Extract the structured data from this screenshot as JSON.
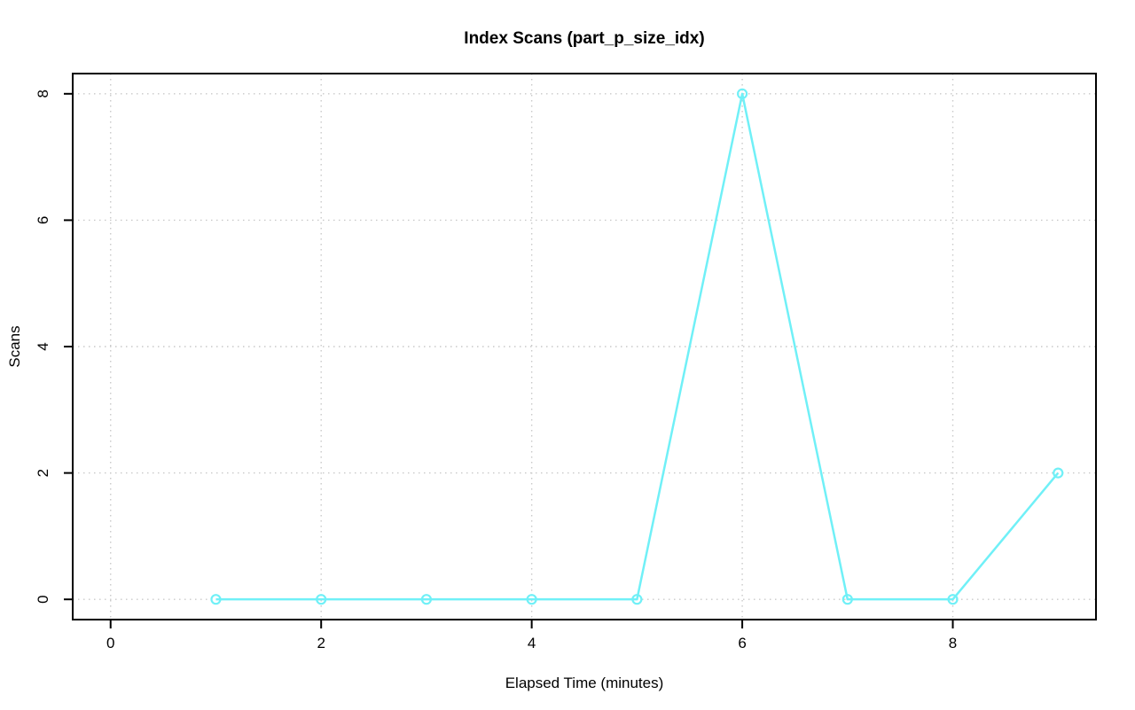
{
  "figure": {
    "background": "#FFFFFF"
  },
  "chart_data": {
    "type": "line",
    "title": "Index Scans (part_p_size_idx)",
    "xlabel": "Elapsed Time (minutes)",
    "ylabel": "Scans",
    "x": [
      1,
      2,
      3,
      4,
      5,
      6,
      7,
      8,
      9
    ],
    "series": [
      {
        "name": "scans",
        "values": [
          0,
          0,
          0,
          0,
          0,
          8,
          0,
          0,
          2
        ]
      }
    ],
    "xticks": [
      0,
      2,
      4,
      6,
      8
    ],
    "yticks": [
      0,
      2,
      4,
      6,
      8
    ],
    "xlim": [
      0,
      9
    ],
    "ylim": [
      0,
      8
    ],
    "grid": true,
    "legend_position": "none",
    "styles": {
      "line_color": "#70F0F7",
      "marker": "open-circle",
      "grid_color": "#C9C9C9",
      "grid_style": "dotted",
      "axis_color": "#000000",
      "text_color": "#000000"
    }
  }
}
